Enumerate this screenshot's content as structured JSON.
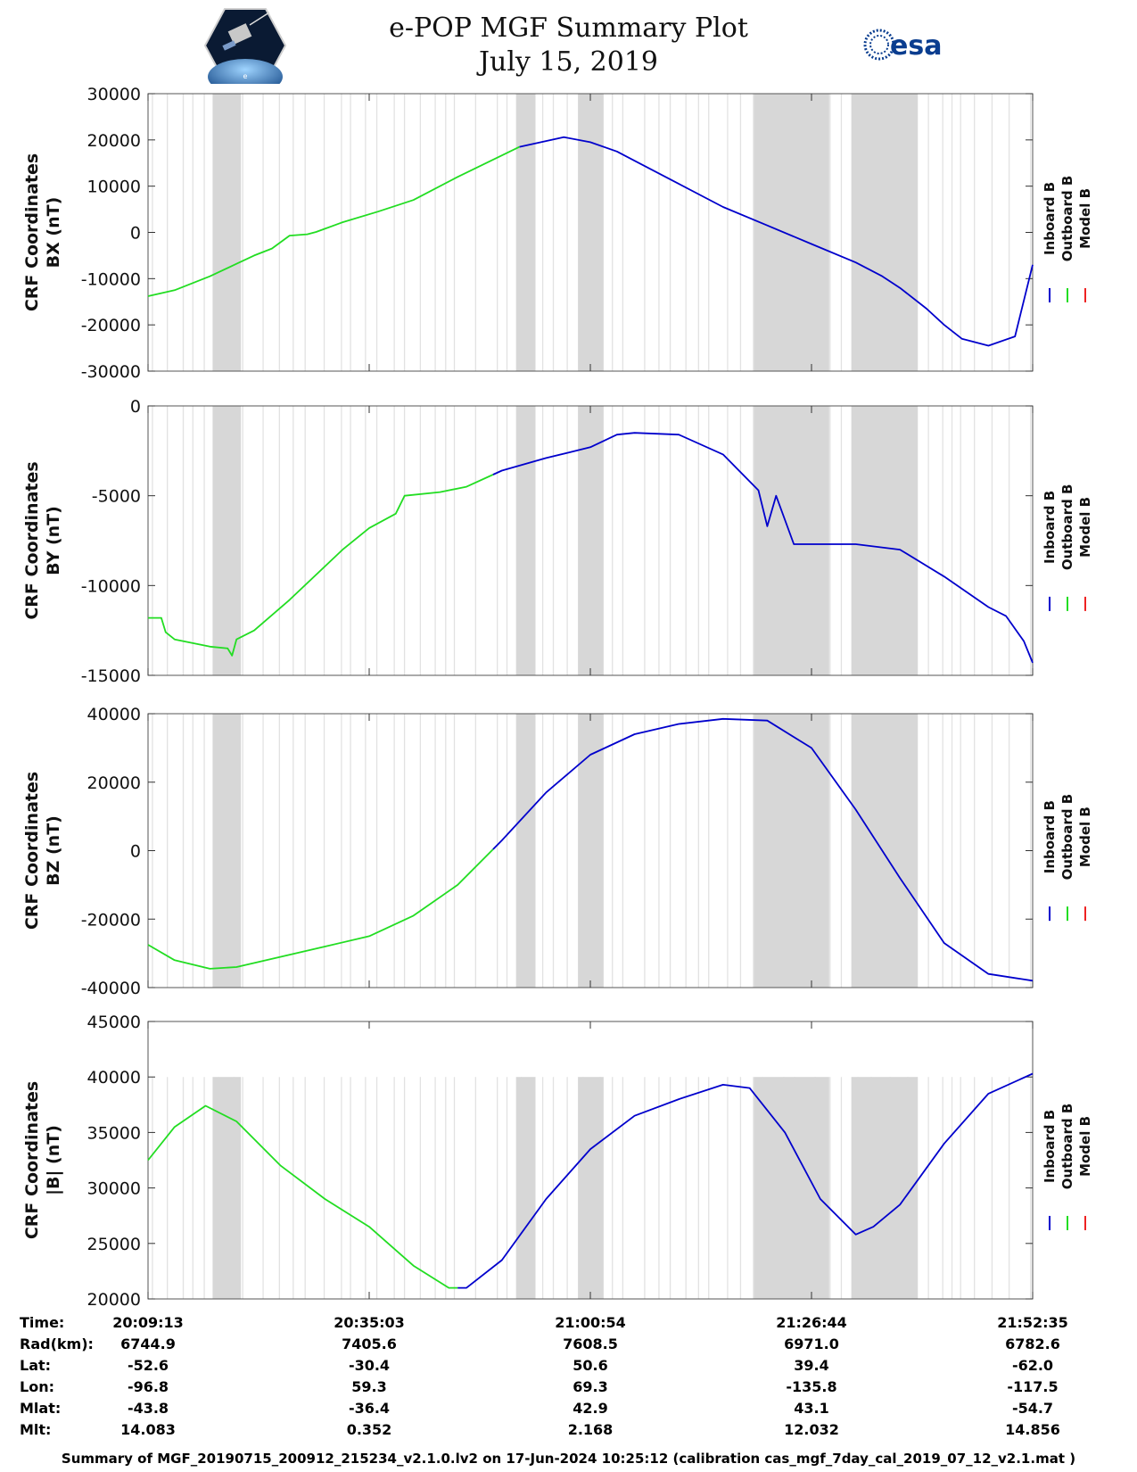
{
  "header": {
    "title": "e-POP MGF Summary Plot",
    "date": "July 15, 2019",
    "left_logo_icon": "cassiope-mission-patch-icon",
    "right_logo_text": "esa",
    "right_logo_icon": "esa-logo-icon"
  },
  "legend": {
    "labels": [
      "Inboard B",
      "Outboard B",
      "Model B"
    ],
    "colors": [
      "#0000cc",
      "#22dd22",
      "#ee2222"
    ]
  },
  "colors": {
    "gap_shading": "#d7d7d7",
    "gap_line": "#e2e2e2"
  },
  "chart_data": [
    {
      "type": "line",
      "title": "",
      "ylabel": [
        "CRF Coordinates",
        "BX (nT)"
      ],
      "ylim": [
        -30000,
        30000
      ],
      "yticks": [
        "30000",
        "20000",
        "10000",
        "0",
        "-10000",
        "-20000",
        "-30000"
      ],
      "ytick_values": [
        30000,
        20000,
        10000,
        0,
        -10000,
        -20000,
        -30000
      ],
      "x": [
        0,
        3,
        7,
        10,
        12,
        14,
        16,
        18,
        19,
        20,
        22,
        26,
        30,
        35,
        42,
        47,
        50,
        53,
        55,
        60,
        65,
        70,
        75,
        80,
        83,
        85,
        88,
        90,
        92,
        95,
        98,
        100
      ],
      "series": [
        {
          "name": "Outboard B",
          "color": "#22dd22",
          "from_x": 0,
          "to_x": 42,
          "values": [
            -13800,
            -12500,
            -9500,
            -6800,
            -5000,
            -3500,
            -700,
            -400,
            100,
            800,
            2200,
            4500,
            7000,
            12000,
            18500,
            20600,
            19500,
            17500,
            15500,
            10500,
            5500,
            1500,
            -2500,
            -6500,
            -9500,
            -12000,
            -16500,
            -20000,
            -23000,
            -24500,
            -22500,
            -7000
          ]
        },
        {
          "name": "Inboard B",
          "color": "#0000cc",
          "from_x": 42,
          "to_x": 100,
          "values": [
            -13800,
            -12500,
            -9500,
            -6800,
            -5000,
            -3500,
            -700,
            -400,
            100,
            800,
            2200,
            4500,
            7000,
            12000,
            18500,
            20600,
            19500,
            17500,
            15500,
            10500,
            5500,
            1500,
            -2500,
            -6500,
            -9500,
            -12000,
            -16500,
            -20000,
            -23000,
            -24500,
            -22500,
            -7000
          ]
        }
      ]
    },
    {
      "type": "line",
      "title": "",
      "ylabel": [
        "CRF Coordinates",
        "BY (nT)"
      ],
      "ylim": [
        -15000,
        0
      ],
      "yticks": [
        "0",
        "-5000",
        "-10000",
        "-15000"
      ],
      "ytick_values": [
        0,
        -5000,
        -10000,
        -15000
      ],
      "x": [
        0,
        1.5,
        2,
        3,
        7,
        9,
        9.5,
        10,
        12,
        16,
        22,
        25,
        28,
        29,
        33,
        36,
        40,
        45,
        50,
        53,
        55,
        60,
        65,
        69,
        70,
        71,
        73,
        80,
        85,
        90,
        95,
        97,
        99,
        100
      ],
      "series": [
        {
          "name": "Outboard B",
          "color": "#22dd22",
          "from_x": 0,
          "to_x": 39,
          "values": [
            -11800,
            -11800,
            -12600,
            -13000,
            -13400,
            -13500,
            -13900,
            -13000,
            -12500,
            -10800,
            -8000,
            -6800,
            -6000,
            -5000,
            -4800,
            -4500,
            -3600,
            -2900,
            -2300,
            -1600,
            -1500,
            -1600,
            -2700,
            -4700,
            -6700,
            -5000,
            -7700,
            -7700,
            -8000,
            -9500,
            -11200,
            -11700,
            -13100,
            -14300
          ]
        },
        {
          "name": "Inboard B",
          "color": "#0000cc",
          "from_x": 39,
          "to_x": 100,
          "values": [
            -11800,
            -11800,
            -12600,
            -13000,
            -13400,
            -13500,
            -13900,
            -13000,
            -12500,
            -10800,
            -8000,
            -6800,
            -6000,
            -5000,
            -4800,
            -4500,
            -3600,
            -2900,
            -2300,
            -1600,
            -1500,
            -1600,
            -2700,
            -4700,
            -6700,
            -5000,
            -7700,
            -7700,
            -8000,
            -9500,
            -11200,
            -11700,
            -13100,
            -14300
          ]
        }
      ]
    },
    {
      "type": "line",
      "title": "",
      "ylabel": [
        "CRF Coordinates",
        "BZ (nT)"
      ],
      "ylim": [
        -40000,
        40000
      ],
      "yticks": [
        "40000",
        "20000",
        "0",
        "-20000",
        "-40000"
      ],
      "ytick_values": [
        40000,
        20000,
        0,
        -20000,
        -40000
      ],
      "x": [
        0,
        3,
        7,
        10,
        15,
        20,
        25,
        30,
        35,
        40,
        45,
        50,
        55,
        60,
        65,
        70,
        75,
        80,
        85,
        90,
        95,
        100
      ],
      "series": [
        {
          "name": "Outboard B",
          "color": "#22dd22",
          "from_x": 0,
          "to_x": 39,
          "values": [
            -27500,
            -32000,
            -34500,
            -34000,
            -31000,
            -28000,
            -25000,
            -19000,
            -10000,
            3000,
            17000,
            28000,
            34000,
            37000,
            38500,
            38000,
            30000,
            12000,
            -8000,
            -27000,
            -36000,
            -38000
          ]
        },
        {
          "name": "Inboard B",
          "color": "#0000cc",
          "from_x": 39,
          "to_x": 100,
          "values": [
            -27500,
            -32000,
            -34500,
            -34000,
            -31000,
            -28000,
            -25000,
            -19000,
            -10000,
            3000,
            17000,
            28000,
            34000,
            37000,
            38500,
            38000,
            30000,
            12000,
            -8000,
            -27000,
            -36000,
            -38000
          ]
        }
      ]
    },
    {
      "type": "line",
      "title": "",
      "ylabel": [
        "CRF Coordinates",
        "|B| (nT)"
      ],
      "ylim": [
        20000,
        45000
      ],
      "yticks": [
        "45000",
        "40000",
        "35000",
        "30000",
        "25000",
        "20000"
      ],
      "ytick_values": [
        45000,
        40000,
        35000,
        30000,
        25000,
        20000
      ],
      "x": [
        0,
        3,
        6.5,
        10,
        15,
        20,
        25,
        30,
        34,
        36,
        40,
        45,
        50,
        55,
        60,
        65,
        68,
        72,
        76,
        80,
        82,
        85,
        90,
        95,
        100
      ],
      "series": [
        {
          "name": "Outboard B",
          "color": "#22dd22",
          "from_x": 0,
          "to_x": 35,
          "values": [
            32500,
            35500,
            37400,
            36000,
            32000,
            29000,
            26500,
            23000,
            21000,
            21000,
            23500,
            29000,
            33500,
            36500,
            38000,
            39300,
            39000,
            35000,
            29000,
            25800,
            26500,
            28500,
            34000,
            38500,
            40300
          ]
        },
        {
          "name": "Inboard B",
          "color": "#0000cc",
          "from_x": 35,
          "to_x": 100,
          "values": [
            32500,
            35500,
            37400,
            36000,
            32000,
            29000,
            26500,
            23000,
            21000,
            21000,
            23500,
            29000,
            33500,
            36500,
            38000,
            39300,
            39000,
            35000,
            29000,
            25800,
            26500,
            28500,
            34000,
            38500,
            40300
          ]
        }
      ]
    }
  ],
  "gap_regions": [
    [
      7.3,
      10.5
    ],
    [
      41.6,
      43.8
    ],
    [
      48.6,
      51.5
    ],
    [
      68.5,
      77.0
    ],
    [
      79.5,
      87.0
    ]
  ],
  "ephemeris": {
    "row_labels": [
      "Time:",
      "Rad(km):",
      "Lat:",
      "Lon:",
      "Mlat:",
      "Mlt:"
    ],
    "tick_positions": [
      0,
      25,
      50,
      75,
      100
    ],
    "columns": [
      [
        "20:09:13",
        "6744.9",
        "-52.6",
        "-96.8",
        "-43.8",
        "14.083"
      ],
      [
        "20:35:03",
        "7405.6",
        "-30.4",
        "59.3",
        "-36.4",
        "0.352"
      ],
      [
        "21:00:54",
        "7608.5",
        "50.6",
        "69.3",
        "42.9",
        "2.168"
      ],
      [
        "21:26:44",
        "6971.0",
        "39.4",
        "-135.8",
        "43.1",
        "12.032"
      ],
      [
        "21:52:35",
        "6782.6",
        "-62.0",
        "-117.5",
        "-54.7",
        "14.856"
      ]
    ]
  },
  "footer": "Summary of MGF_20190715_200912_215234_v2.1.0.lv2 on 17-Jun-2024 10:25:12 (calibration cas_mgf_7day_cal_2019_07_12_v2.1.mat )"
}
